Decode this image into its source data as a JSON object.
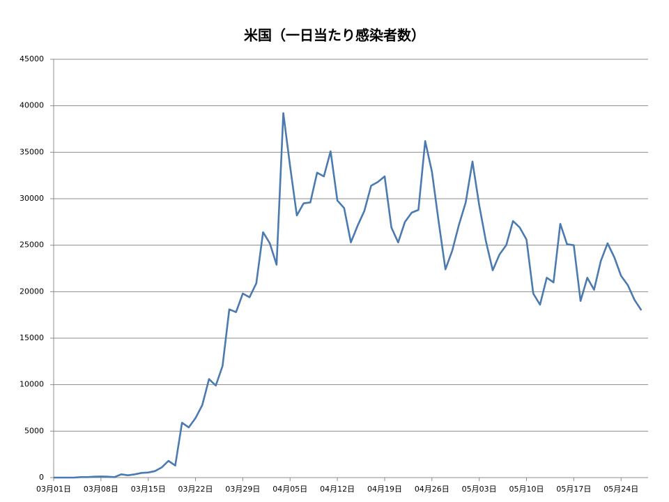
{
  "chart_data": {
    "type": "line",
    "title": "米国（一日当たり感染者数）",
    "categories": [
      "03月01日",
      null,
      null,
      null,
      null,
      null,
      null,
      "03月08日",
      null,
      null,
      null,
      null,
      null,
      null,
      "03月15日",
      null,
      null,
      null,
      null,
      null,
      null,
      "03月22日",
      null,
      null,
      null,
      null,
      null,
      null,
      "03月29日",
      null,
      null,
      null,
      null,
      null,
      null,
      "04月05日",
      null,
      null,
      null,
      null,
      null,
      null,
      "04月12日",
      null,
      null,
      null,
      null,
      null,
      null,
      "04月19日",
      null,
      null,
      null,
      null,
      null,
      null,
      "04月26日",
      null,
      null,
      null,
      null,
      null,
      null,
      "05月03日",
      null,
      null,
      null,
      null,
      null,
      null,
      "05月10日",
      null,
      null,
      null,
      null,
      null,
      null,
      "05月17日",
      null,
      null,
      null,
      null,
      null,
      null,
      "05月24日",
      null,
      null,
      null
    ],
    "series": [
      {
        "color": "#4a7ab0",
        "values": [
          0,
          0,
          0,
          0,
          50,
          50,
          100,
          120,
          100,
          50,
          350,
          250,
          350,
          500,
          550,
          700,
          1100,
          1800,
          1300,
          5900,
          5400,
          6400,
          7800,
          10600,
          9900,
          12000,
          18100,
          17800,
          19800,
          19400,
          20900,
          26400,
          25200,
          22900,
          39200,
          33500,
          28200,
          29500,
          29600,
          32800,
          32400,
          35100,
          29800,
          29000,
          25300,
          27100,
          28700,
          31400,
          31800,
          32400,
          26900,
          25300,
          27500,
          28500,
          28800,
          36200,
          32900,
          27500,
          22400,
          24400,
          27200,
          29600,
          34000,
          29300,
          25400,
          22300,
          24000,
          25000,
          27600,
          26900,
          25600,
          19800,
          18600,
          21500,
          21000,
          27300,
          25100,
          25000,
          19000,
          21500,
          20200,
          23300,
          25200,
          23700,
          21700,
          20700,
          19100,
          18000
        ]
      }
    ],
    "ylim": [
      0,
      45000
    ],
    "yticks": [
      0,
      5000,
      10000,
      15000,
      20000,
      25000,
      30000,
      35000,
      40000,
      45000
    ],
    "grid": true
  }
}
